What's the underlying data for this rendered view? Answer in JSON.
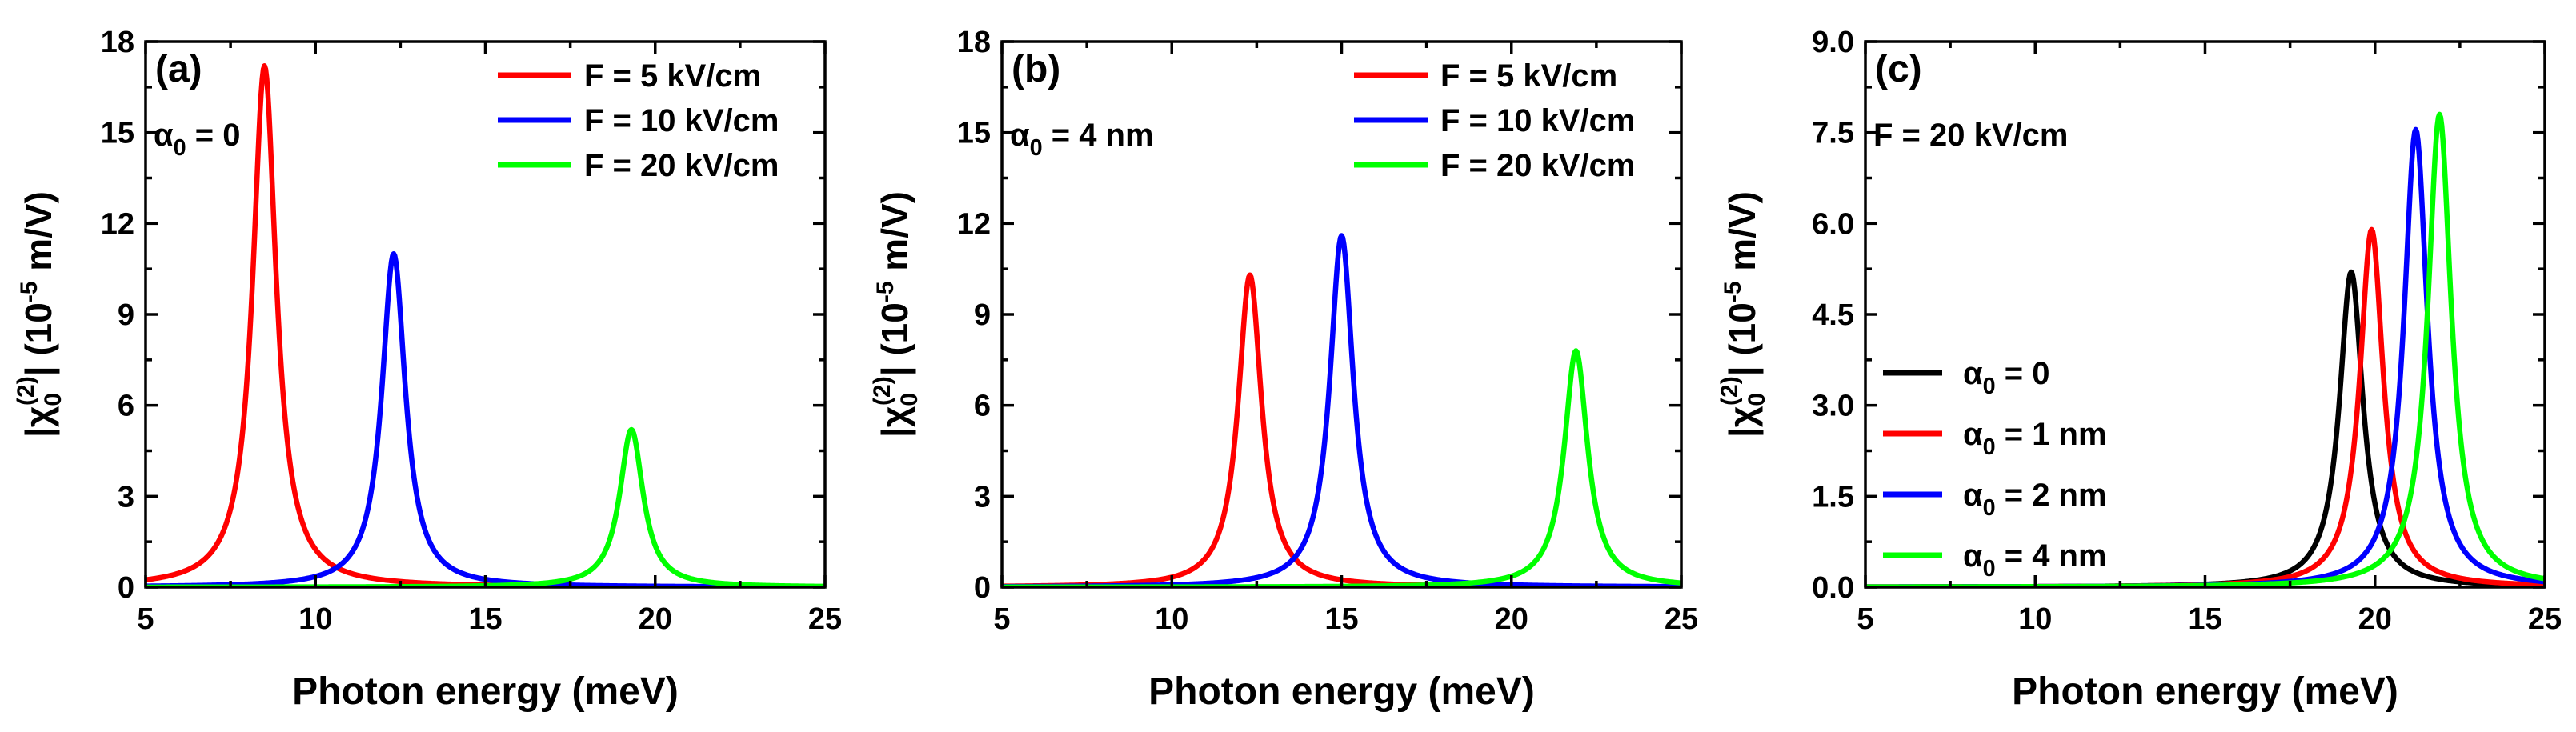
{
  "chart_data": [
    {
      "type": "line",
      "panel": "(a)",
      "param_label": {
        "prefix": "α",
        "sub": "0",
        "text": " = 0"
      },
      "xlabel": "Photon energy (meV)",
      "ylabel": {
        "open": "|χ",
        "sub": "0",
        "sup": "(2)",
        "mid": "| (10",
        "exp": "-5",
        "close": " m/V)"
      },
      "xlim": [
        5,
        25
      ],
      "ylim": [
        0,
        18
      ],
      "xticks": [
        5,
        10,
        15,
        20,
        25
      ],
      "xtick_labels": [
        "5",
        "10",
        "15",
        "20",
        "25"
      ],
      "yticks": [
        0,
        3,
        6,
        9,
        12,
        15,
        18
      ],
      "ytick_labels": [
        "0",
        "3",
        "6",
        "9",
        "12",
        "15",
        "18"
      ],
      "legend_position": "top-right",
      "series": [
        {
          "name": "F = 5 kV/cm",
          "color": "#ff0000",
          "peak_x": 8.5,
          "peak_y": 17.2,
          "gamma": 0.42
        },
        {
          "name": "F = 10 kV/cm",
          "color": "#0000ff",
          "peak_x": 12.3,
          "peak_y": 11.0,
          "gamma": 0.42
        },
        {
          "name": "F = 20 kV/cm",
          "color": "#00ff00",
          "peak_x": 19.3,
          "peak_y": 5.2,
          "gamma": 0.42
        }
      ]
    },
    {
      "type": "line",
      "panel": "(b)",
      "param_label": {
        "prefix": "α",
        "sub": "0",
        "text": " = 4 nm"
      },
      "xlabel": "Photon energy (meV)",
      "ylabel": {
        "open": "|χ",
        "sub": "0",
        "sup": "(2)",
        "mid": "| (10",
        "exp": "-5",
        "close": " m/V)"
      },
      "xlim": [
        5,
        25
      ],
      "ylim": [
        0,
        18
      ],
      "xticks": [
        5,
        10,
        15,
        20,
        25
      ],
      "xtick_labels": [
        "5",
        "10",
        "15",
        "20",
        "25"
      ],
      "yticks": [
        0,
        3,
        6,
        9,
        12,
        15,
        18
      ],
      "ytick_labels": [
        "0",
        "3",
        "6",
        "9",
        "12",
        "15",
        "18"
      ],
      "legend_position": "top-right",
      "series": [
        {
          "name": "F = 5 kV/cm",
          "color": "#ff0000",
          "peak_x": 12.3,
          "peak_y": 10.3,
          "gamma": 0.42
        },
        {
          "name": "F = 10 kV/cm",
          "color": "#0000ff",
          "peak_x": 15.0,
          "peak_y": 11.6,
          "gamma": 0.42
        },
        {
          "name": "F = 20 kV/cm",
          "color": "#00ff00",
          "peak_x": 21.9,
          "peak_y": 7.8,
          "gamma": 0.42
        }
      ]
    },
    {
      "type": "line",
      "panel": "(c)",
      "param_label": {
        "prefix": "",
        "sub": "",
        "text": "F = 20 kV/cm"
      },
      "xlabel": "Photon energy (meV)",
      "ylabel": {
        "open": "|χ",
        "sub": "0",
        "sup": "(2)",
        "mid": "| (10",
        "exp": "-5",
        "close": " m/V)"
      },
      "xlim": [
        5,
        25
      ],
      "ylim": [
        0,
        9
      ],
      "xticks": [
        5,
        10,
        15,
        20,
        25
      ],
      "xtick_labels": [
        "5",
        "10",
        "15",
        "20",
        "25"
      ],
      "yticks": [
        0,
        1.5,
        3,
        4.5,
        6,
        7.5,
        9
      ],
      "ytick_labels": [
        "0.0",
        "1.5",
        "3.0",
        "4.5",
        "6.0",
        "7.5",
        "9.0"
      ],
      "legend_position": "lower-left",
      "series": [
        {
          "name": "α0 = 0",
          "legend": {
            "prefix": "α",
            "sub": "0",
            "text": " = 0"
          },
          "color": "#000000",
          "peak_x": 19.3,
          "peak_y": 5.2,
          "gamma": 0.42
        },
        {
          "name": "α0 = 1 nm",
          "legend": {
            "prefix": "α",
            "sub": "0",
            "text": " = 1 nm"
          },
          "color": "#ff0000",
          "peak_x": 19.9,
          "peak_y": 5.9,
          "gamma": 0.42
        },
        {
          "name": "α0 = 2 nm",
          "legend": {
            "prefix": "α",
            "sub": "0",
            "text": " = 2 nm"
          },
          "color": "#0000ff",
          "peak_x": 21.2,
          "peak_y": 7.55,
          "gamma": 0.42
        },
        {
          "name": "α0 = 4 nm",
          "legend": {
            "prefix": "α",
            "sub": "0",
            "text": " = 4 nm"
          },
          "color": "#00ff00",
          "peak_x": 21.9,
          "peak_y": 7.8,
          "gamma": 0.42
        }
      ]
    }
  ]
}
